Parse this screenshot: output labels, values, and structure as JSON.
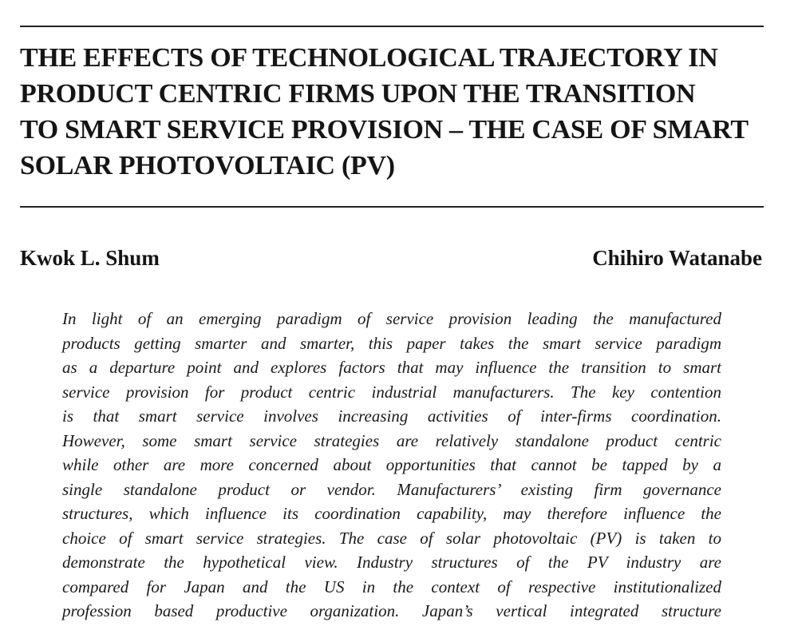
{
  "paper": {
    "title_lines": [
      "THE EFFECTS OF TECHNOLOGICAL TRAJECTORY IN",
      "PRODUCT CENTRIC FIRMS  UPON THE TRANSITION",
      "TO SMART SERVICE PROVISION – THE CASE OF SMART",
      "SOLAR PHOTOVOLTAIC (PV)"
    ],
    "authors": {
      "left": "Kwok L. Shum",
      "right": "Chihiro Watanabe"
    },
    "abstract_lines": [
      "In light of an emerging paradigm of service provision leading the manufactured",
      "products getting smarter and smarter, this paper takes the smart service paradigm",
      "as a departure point and explores factors that may influence the transition to smart",
      "service provision for product centric industrial manufacturers. The key contention",
      "is that smart service involves increasing activities of inter-firms coordination.",
      "However, some smart service strategies are relatively standalone product centric",
      "while other are more concerned about opportunities that cannot be tapped by a",
      "single standalone product or vendor.  Manufacturers’ existing firm governance",
      "structures, which influence its coordination capability, may therefore influence the",
      "choice of smart service strategies. The case of solar photovoltaic (PV) is taken to",
      "demonstrate the hypothetical view. Industry structures of the PV industry are",
      "compared for Japan and the US in the context of respective institutionalized",
      "profession based productive organization. Japan’s vertical integrated structure"
    ]
  }
}
